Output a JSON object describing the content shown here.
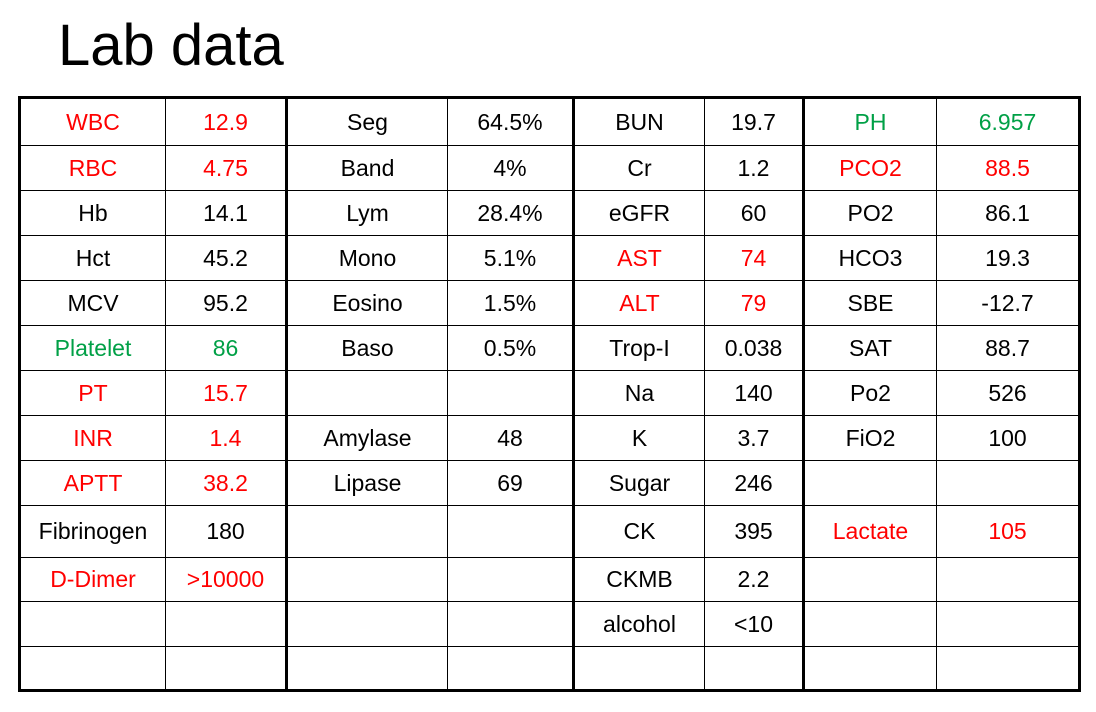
{
  "title": "Lab data",
  "colors": {
    "red": "#ff0000",
    "green": "#00a046",
    "black": "#000000"
  },
  "columns": [
    {
      "role": "name",
      "width": 146
    },
    {
      "role": "value",
      "width": 121
    },
    {
      "role": "name",
      "width": 161
    },
    {
      "role": "value",
      "width": 126
    },
    {
      "role": "name",
      "width": 131
    },
    {
      "role": "value",
      "width": 99
    },
    {
      "role": "name",
      "width": 133
    },
    {
      "role": "value",
      "width": 143
    }
  ],
  "rows": [
    {
      "height": 48,
      "cells": [
        {
          "text": "WBC",
          "color": "red"
        },
        {
          "text": "12.9",
          "color": "red"
        },
        {
          "text": "Seg"
        },
        {
          "text": "64.5%"
        },
        {
          "text": "BUN"
        },
        {
          "text": "19.7"
        },
        {
          "text": "PH",
          "color": "green"
        },
        {
          "text": "6.957",
          "color": "green"
        }
      ]
    },
    {
      "height": 45,
      "cells": [
        {
          "text": "RBC",
          "color": "red"
        },
        {
          "text": "4.75",
          "color": "red"
        },
        {
          "text": "Band"
        },
        {
          "text": "4%"
        },
        {
          "text": "Cr"
        },
        {
          "text": "1.2"
        },
        {
          "text": "PCO2",
          "color": "red"
        },
        {
          "text": "88.5",
          "color": "red"
        }
      ]
    },
    {
      "height": 45,
      "cells": [
        {
          "text": "Hb"
        },
        {
          "text": "14.1"
        },
        {
          "text": "Lym"
        },
        {
          "text": "28.4%"
        },
        {
          "text": "eGFR"
        },
        {
          "text": "60"
        },
        {
          "text": "PO2"
        },
        {
          "text": "86.1"
        }
      ]
    },
    {
      "height": 45,
      "cells": [
        {
          "text": "Hct"
        },
        {
          "text": "45.2"
        },
        {
          "text": "Mono"
        },
        {
          "text": "5.1%"
        },
        {
          "text": "AST",
          "color": "red"
        },
        {
          "text": "74",
          "color": "red"
        },
        {
          "text": "HCO3"
        },
        {
          "text": "19.3"
        }
      ]
    },
    {
      "height": 45,
      "cells": [
        {
          "text": "MCV"
        },
        {
          "text": "95.2"
        },
        {
          "text": "Eosino"
        },
        {
          "text": "1.5%"
        },
        {
          "text": "ALT",
          "color": "red"
        },
        {
          "text": "79",
          "color": "red"
        },
        {
          "text": "SBE"
        },
        {
          "text": "-12.7"
        }
      ]
    },
    {
      "height": 45,
      "cells": [
        {
          "text": "Platelet",
          "color": "green"
        },
        {
          "text": "86",
          "color": "green"
        },
        {
          "text": "Baso"
        },
        {
          "text": "0.5%"
        },
        {
          "text": "Trop-I"
        },
        {
          "text": "0.038"
        },
        {
          "text": "SAT"
        },
        {
          "text": "88.7"
        }
      ]
    },
    {
      "height": 45,
      "cells": [
        {
          "text": "PT",
          "color": "red"
        },
        {
          "text": "15.7",
          "color": "red"
        },
        {
          "text": ""
        },
        {
          "text": ""
        },
        {
          "text": "Na"
        },
        {
          "text": "140"
        },
        {
          "text": "Po2"
        },
        {
          "text": "526"
        }
      ]
    },
    {
      "height": 45,
      "cells": [
        {
          "text": "INR",
          "color": "red"
        },
        {
          "text": "1.4",
          "color": "red"
        },
        {
          "text": "Amylase"
        },
        {
          "text": "48"
        },
        {
          "text": "K"
        },
        {
          "text": "3.7"
        },
        {
          "text": "FiO2"
        },
        {
          "text": "100"
        }
      ]
    },
    {
      "height": 45,
      "cells": [
        {
          "text": "APTT",
          "color": "red"
        },
        {
          "text": "38.2",
          "color": "red"
        },
        {
          "text": "Lipase"
        },
        {
          "text": "69"
        },
        {
          "text": "Sugar"
        },
        {
          "text": "246"
        },
        {
          "text": ""
        },
        {
          "text": ""
        }
      ]
    },
    {
      "height": 52,
      "cells": [
        {
          "text": "Fibrinogen"
        },
        {
          "text": "180"
        },
        {
          "text": ""
        },
        {
          "text": ""
        },
        {
          "text": "CK"
        },
        {
          "text": "395"
        },
        {
          "text": "Lactate",
          "color": "red"
        },
        {
          "text": "105",
          "color": "red"
        }
      ]
    },
    {
      "height": 44,
      "cells": [
        {
          "text": "D-Dimer",
          "color": "red"
        },
        {
          "text": ">10000",
          "color": "red"
        },
        {
          "text": ""
        },
        {
          "text": ""
        },
        {
          "text": "CKMB"
        },
        {
          "text": "2.2"
        },
        {
          "text": ""
        },
        {
          "text": ""
        }
      ]
    },
    {
      "height": 45,
      "cells": [
        {
          "text": ""
        },
        {
          "text": ""
        },
        {
          "text": ""
        },
        {
          "text": ""
        },
        {
          "text": "alcohol"
        },
        {
          "text": "<10"
        },
        {
          "text": ""
        },
        {
          "text": ""
        }
      ]
    },
    {
      "height": 44,
      "cells": [
        {
          "text": ""
        },
        {
          "text": ""
        },
        {
          "text": ""
        },
        {
          "text": ""
        },
        {
          "text": ""
        },
        {
          "text": ""
        },
        {
          "text": ""
        },
        {
          "text": ""
        }
      ]
    }
  ]
}
